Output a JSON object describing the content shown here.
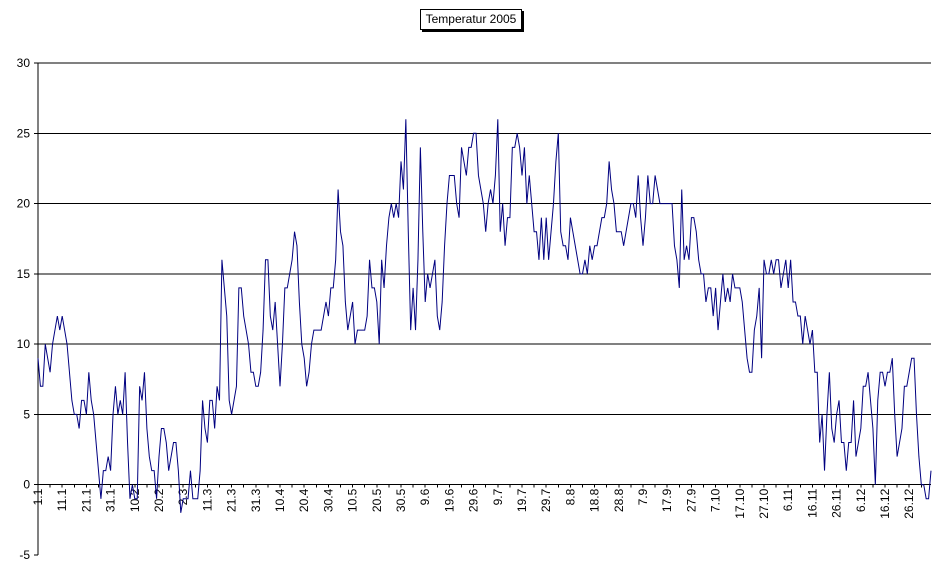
{
  "chart_data": {
    "type": "line",
    "title": "Temperatur 2005",
    "xlabel": "",
    "ylabel": "",
    "ylim": [
      -5,
      30
    ],
    "yticks": [
      -5,
      0,
      5,
      10,
      15,
      20,
      25,
      30
    ],
    "grid": "horizontal",
    "legend": "none",
    "x_tick_labels": [
      "1.1",
      "11.1",
      "21.1",
      "31.1",
      "10.2",
      "20.2",
      "2.3",
      "11.3",
      "21.3",
      "31.3",
      "10.4",
      "20.4",
      "30.4",
      "10.5",
      "20.5",
      "30.5",
      "9.6",
      "19.6",
      "29.6",
      "9.7",
      "19.7",
      "29.7",
      "8.8",
      "18.8",
      "28.8",
      "7.9",
      "17.9",
      "27.9",
      "7.10",
      "17.10",
      "27.10",
      "6.11",
      "16.11",
      "26.11",
      "6.12",
      "16.12",
      "26.12"
    ],
    "series": [
      {
        "color": "#000080",
        "values": [
          9,
          7,
          7,
          10,
          9,
          8,
          10,
          11,
          12,
          11,
          12,
          11,
          10,
          8,
          6,
          5,
          5,
          4,
          6,
          6,
          5,
          8,
          6,
          5,
          3,
          1,
          -1,
          1,
          1,
          2,
          1,
          5,
          7,
          5,
          6,
          5,
          8,
          3,
          -1,
          0,
          -1,
          -1,
          7,
          6,
          8,
          4,
          2,
          1,
          1,
          -1,
          2,
          4,
          4,
          3,
          1,
          2,
          3,
          3,
          1,
          -2,
          -1,
          -1,
          -1,
          1,
          -1,
          -1,
          -1,
          1,
          6,
          4,
          3,
          6,
          6,
          4,
          7,
          6,
          16,
          14,
          12,
          6,
          5,
          6,
          7,
          14,
          14,
          12,
          11,
          10,
          8,
          8,
          7,
          7,
          8,
          11,
          16,
          16,
          12,
          11,
          13,
          10,
          7,
          10,
          14,
          14,
          15,
          16,
          18,
          17,
          13,
          10,
          9,
          7,
          8,
          10,
          11,
          11,
          11,
          11,
          12,
          13,
          12,
          14,
          14,
          16,
          21,
          18,
          17,
          13,
          11,
          12,
          13,
          10,
          11,
          11,
          11,
          11,
          12,
          16,
          14,
          14,
          13,
          10,
          16,
          14,
          17,
          19,
          20,
          19,
          20,
          19,
          23,
          21,
          26,
          18,
          11,
          14,
          11,
          16,
          24,
          18,
          13,
          15,
          14,
          15,
          16,
          12,
          11,
          13,
          17,
          20,
          22,
          22,
          22,
          20,
          19,
          24,
          23,
          22,
          24,
          24,
          25,
          25,
          22,
          21,
          20,
          18,
          20,
          21,
          20,
          22,
          26,
          18,
          20,
          17,
          19,
          19,
          24,
          24,
          25,
          24,
          22,
          24,
          20,
          22,
          20,
          18,
          18,
          16,
          19,
          16,
          19,
          16,
          18,
          20,
          23,
          25,
          18,
          17,
          17,
          16,
          19,
          18,
          17,
          16,
          15,
          15,
          16,
          15,
          17,
          16,
          17,
          17,
          18,
          19,
          19,
          20,
          23,
          21,
          20,
          18,
          18,
          18,
          17,
          18,
          19,
          20,
          20,
          19,
          22,
          19,
          17,
          19,
          22,
          20,
          20,
          22,
          21,
          20,
          20,
          20,
          20,
          20,
          20,
          17,
          16,
          14,
          21,
          16,
          17,
          16,
          19,
          19,
          18,
          16,
          15,
          15,
          13,
          14,
          14,
          12,
          14,
          11,
          13,
          15,
          13,
          14,
          13,
          15,
          14,
          14,
          14,
          13,
          11,
          9,
          8,
          8,
          11,
          12,
          14,
          9,
          16,
          15,
          15,
          16,
          15,
          16,
          16,
          14,
          15,
          16,
          14,
          16,
          13,
          13,
          12,
          12,
          10,
          12,
          11,
          10,
          11,
          8,
          8,
          3,
          5,
          1,
          5,
          8,
          4,
          3,
          5,
          6,
          3,
          3,
          1,
          3,
          3,
          6,
          2,
          3,
          4,
          7,
          7,
          8,
          6,
          4,
          0,
          6,
          8,
          8,
          7,
          8,
          8,
          9,
          5,
          2,
          3,
          4,
          7,
          7,
          8,
          9,
          9,
          5,
          2,
          0,
          0,
          -1,
          -1,
          1
        ]
      }
    ]
  }
}
